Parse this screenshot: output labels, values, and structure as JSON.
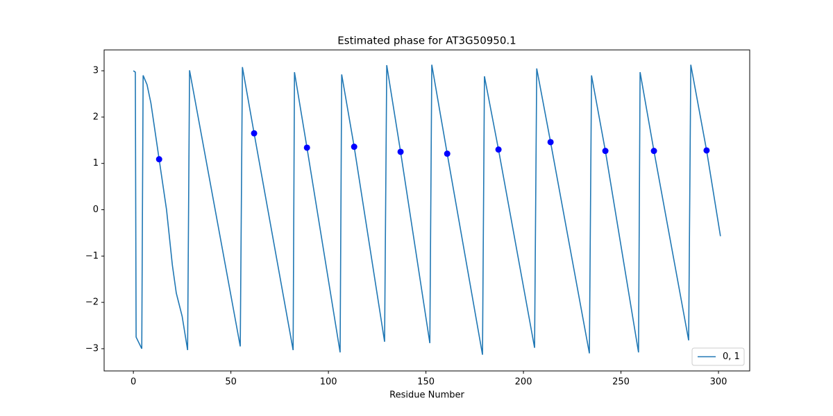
{
  "chart_data": {
    "type": "line",
    "title": "Estimated phase for AT3G50950.1",
    "x_label": "Residue Number",
    "x": [
      0,
      1,
      1.4,
      4.3,
      5,
      6,
      7,
      9,
      13.2,
      17,
      20,
      22,
      25,
      27.8,
      28.8,
      54.8,
      55.9,
      61.9,
      81.9,
      82.6,
      89,
      106,
      106.8,
      113.2,
      128.8,
      129.9,
      137,
      152,
      153,
      160.9,
      179,
      180,
      187.2,
      205.7,
      206.8,
      213.9,
      233.8,
      234.9,
      242,
      259,
      259.8,
      266.9,
      284.7,
      285.8,
      293.9,
      301
    ],
    "series": [
      {
        "name": "0, 1",
        "color": "#1f77b4",
        "values": [
          3.0,
          2.97,
          -2.75,
          -3.0,
          2.9,
          2.8,
          2.7,
          2.3,
          1.09,
          0,
          -1.2,
          -1.8,
          -2.3,
          -3.03,
          3.01,
          -2.95,
          3.08,
          1.65,
          -3.03,
          2.97,
          1.34,
          -3.08,
          2.92,
          1.36,
          -2.85,
          3.12,
          1.25,
          -2.88,
          3.13,
          1.21,
          -3.13,
          2.88,
          1.3,
          -2.98,
          3.05,
          1.46,
          -3.1,
          2.9,
          1.27,
          -3.08,
          2.97,
          1.27,
          -2.82,
          3.13,
          1.28,
          -0.57
        ]
      }
    ],
    "markers": {
      "color": "#0000ff",
      "x": [
        13.2,
        61.9,
        89,
        113.2,
        137,
        160.9,
        187.2,
        213.9,
        242,
        266.9,
        293.9
      ],
      "values": [
        1.09,
        1.65,
        1.34,
        1.36,
        1.25,
        1.21,
        1.3,
        1.46,
        1.27,
        1.27,
        1.28
      ]
    },
    "xlim": [
      -15,
      316
    ],
    "ylim": [
      -3.48,
      3.45
    ],
    "xticks": [
      0,
      50,
      100,
      150,
      200,
      250,
      300
    ],
    "yticks": [
      {
        "value": -3,
        "label": "−3"
      },
      {
        "value": -2,
        "label": "−2"
      },
      {
        "value": -1,
        "label": "−1"
      },
      0,
      1,
      2,
      3
    ],
    "grid": false,
    "legend": "lower right"
  }
}
